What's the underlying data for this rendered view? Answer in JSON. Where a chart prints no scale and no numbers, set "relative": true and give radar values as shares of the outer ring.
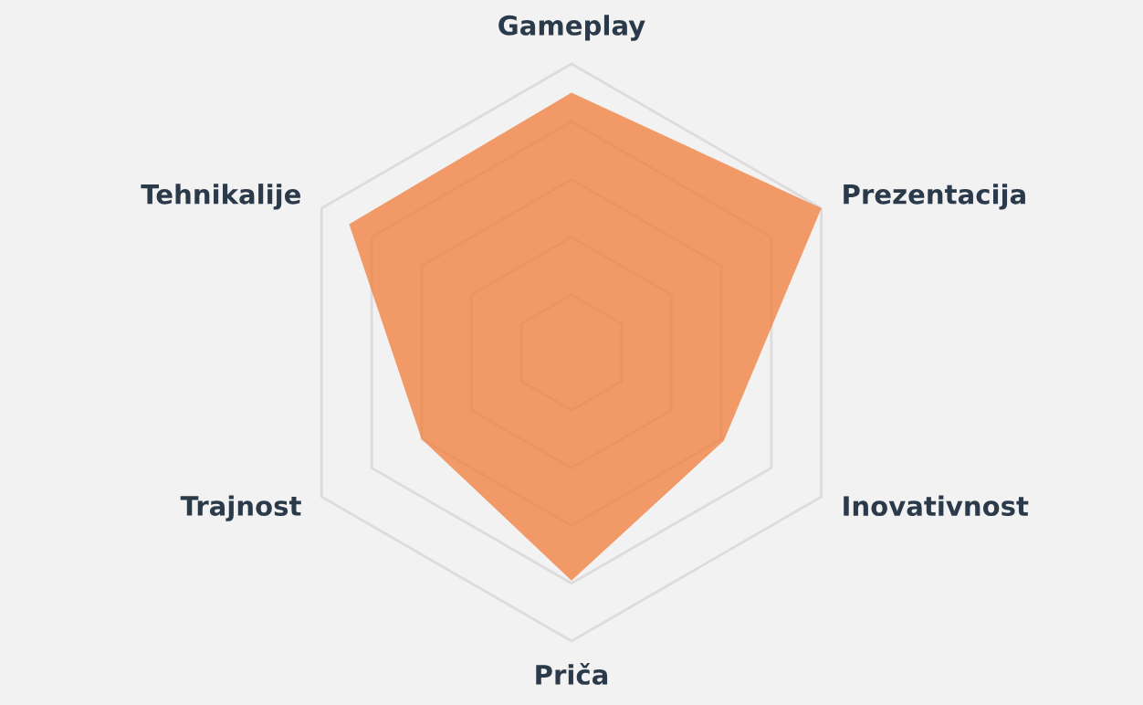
{
  "chart_data": {
    "type": "radar",
    "relative": true,
    "grid": true,
    "legend": false,
    "categories": [
      "Gameplay",
      "Prezentacija",
      "Inovativnost",
      "Priča",
      "Trajnost",
      "Tehnikalije"
    ],
    "series": [
      {
        "color": "#f07c3a",
        "values": [
          0.9,
          1.0,
          0.61,
          0.79,
          0.6,
          0.89
        ]
      }
    ]
  }
}
